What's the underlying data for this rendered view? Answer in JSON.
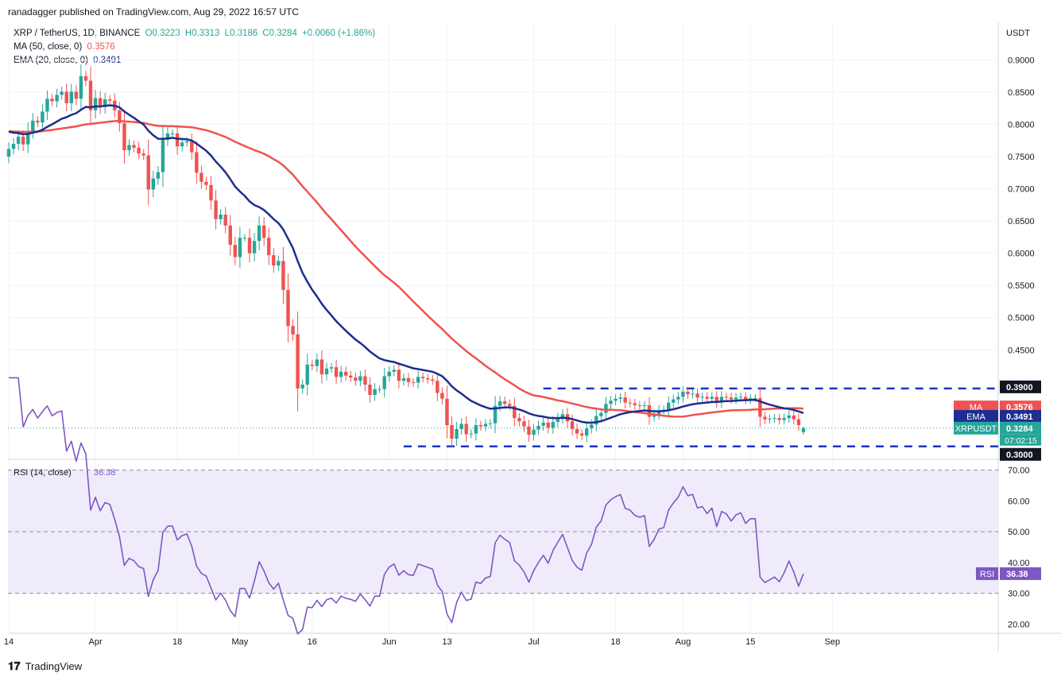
{
  "publisher": "ranadagger published on TradingView.com, Aug 29, 2022 16:57 UTC",
  "legend": {
    "symbol": "XRP / TetherUS, 1D, BINANCE",
    "open": "O0.3223",
    "high": "H0.3313",
    "low": "L0.3186",
    "close": "C0.3284",
    "change": "+0.0060 (+1.86%)",
    "ma_label": "MA (50, close, 0)",
    "ma_value": "0.3576",
    "ema_label": "EMA (20, close, 0)",
    "ema_value": "0.3491"
  },
  "rsi_legend": {
    "label": "RSI (14, close)",
    "value": "36.38"
  },
  "logo": "TradingView",
  "colors": {
    "up": "#26a69a",
    "down": "#ef5350",
    "ma": "#ef5350",
    "ema": "#1e2d8f",
    "rsi": "#7e57c2",
    "dashed": "#1a34cc",
    "badge_level": "#131722"
  },
  "chart_data": [
    {
      "type": "candlestick",
      "title": "XRP / TetherUS, 1D, BINANCE",
      "currency": "USDT",
      "ylim": [
        0.28,
        0.96
      ],
      "y_ticks": [
        "0.9000",
        "0.8500",
        "0.8000",
        "0.7500",
        "0.7000",
        "0.6500",
        "0.6000",
        "0.5500",
        "0.5000",
        "0.4500"
      ],
      "x_ticks": [
        {
          "label": "14",
          "day": 0
        },
        {
          "label": "Apr",
          "day": 18
        },
        {
          "label": "18",
          "day": 35
        },
        {
          "label": "May",
          "day": 48
        },
        {
          "label": "16",
          "day": 63
        },
        {
          "label": "Jun",
          "day": 79
        },
        {
          "label": "13",
          "day": 91
        },
        {
          "label": "Jul",
          "day": 109
        },
        {
          "label": "18",
          "day": 126
        },
        {
          "label": "Aug",
          "day": 140
        },
        {
          "label": "15",
          "day": 154
        },
        {
          "label": "Sep",
          "day": 171
        }
      ],
      "closes": [
        0.762,
        0.77,
        0.781,
        0.769,
        0.79,
        0.806,
        0.803,
        0.82,
        0.84,
        0.836,
        0.846,
        0.851,
        0.833,
        0.851,
        0.84,
        0.875,
        0.868,
        0.822,
        0.841,
        0.827,
        0.839,
        0.837,
        0.822,
        0.802,
        0.76,
        0.768,
        0.764,
        0.755,
        0.752,
        0.699,
        0.716,
        0.726,
        0.776,
        0.786,
        0.786,
        0.766,
        0.772,
        0.774,
        0.757,
        0.725,
        0.711,
        0.706,
        0.682,
        0.653,
        0.66,
        0.643,
        0.613,
        0.594,
        0.624,
        0.624,
        0.6,
        0.619,
        0.643,
        0.624,
        0.597,
        0.581,
        0.588,
        0.543,
        0.487,
        0.474,
        0.39,
        0.396,
        0.427,
        0.425,
        0.435,
        0.412,
        0.421,
        0.423,
        0.408,
        0.416,
        0.41,
        0.407,
        0.402,
        0.409,
        0.396,
        0.38,
        0.389,
        0.389,
        0.409,
        0.416,
        0.419,
        0.402,
        0.406,
        0.4,
        0.399,
        0.408,
        0.406,
        0.404,
        0.402,
        0.383,
        0.374,
        0.333,
        0.312,
        0.327,
        0.335,
        0.319,
        0.32,
        0.333,
        0.331,
        0.335,
        0.336,
        0.363,
        0.37,
        0.366,
        0.363,
        0.344,
        0.339,
        0.331,
        0.318,
        0.326,
        0.332,
        0.337,
        0.329,
        0.338,
        0.344,
        0.35,
        0.339,
        0.327,
        0.32,
        0.317,
        0.328,
        0.334,
        0.347,
        0.352,
        0.366,
        0.371,
        0.374,
        0.376,
        0.368,
        0.367,
        0.364,
        0.363,
        0.364,
        0.346,
        0.35,
        0.356,
        0.357,
        0.368,
        0.373,
        0.377,
        0.385,
        0.381,
        0.382,
        0.376,
        0.377,
        0.374,
        0.377,
        0.369,
        0.377,
        0.376,
        0.373,
        0.376,
        0.377,
        0.373,
        0.375,
        0.375,
        0.346,
        0.342,
        0.343,
        0.344,
        0.341,
        0.344,
        0.348,
        0.342,
        0.333,
        0.328
      ],
      "current_price": 0.3284,
      "countdown": "07:02:15",
      "levels": [
        {
          "value": 0.39,
          "label": "0.3900"
        },
        {
          "value": 0.3,
          "label": "0.3000"
        }
      ],
      "price_tags": [
        {
          "name": "MA",
          "value": 0.3576,
          "label": "0.3576",
          "color": "#ef5350"
        },
        {
          "name": "EMA",
          "value": 0.3491,
          "label": "0.3491",
          "color": "#1e2d8f"
        },
        {
          "name": "XRPUSDT",
          "value": 0.3284,
          "label": "0.3284",
          "color": "#26a69a"
        }
      ]
    },
    {
      "type": "line",
      "title": "RSI (14, close)",
      "ylim": [
        17,
        73
      ],
      "y_ticks": [
        "70.00",
        "60.00",
        "50.00",
        "40.00",
        "30.00",
        "20.00"
      ],
      "band": [
        30,
        70
      ],
      "midline": 50,
      "current": 36.38,
      "current_label": "36.38",
      "tag": "RSI"
    }
  ]
}
